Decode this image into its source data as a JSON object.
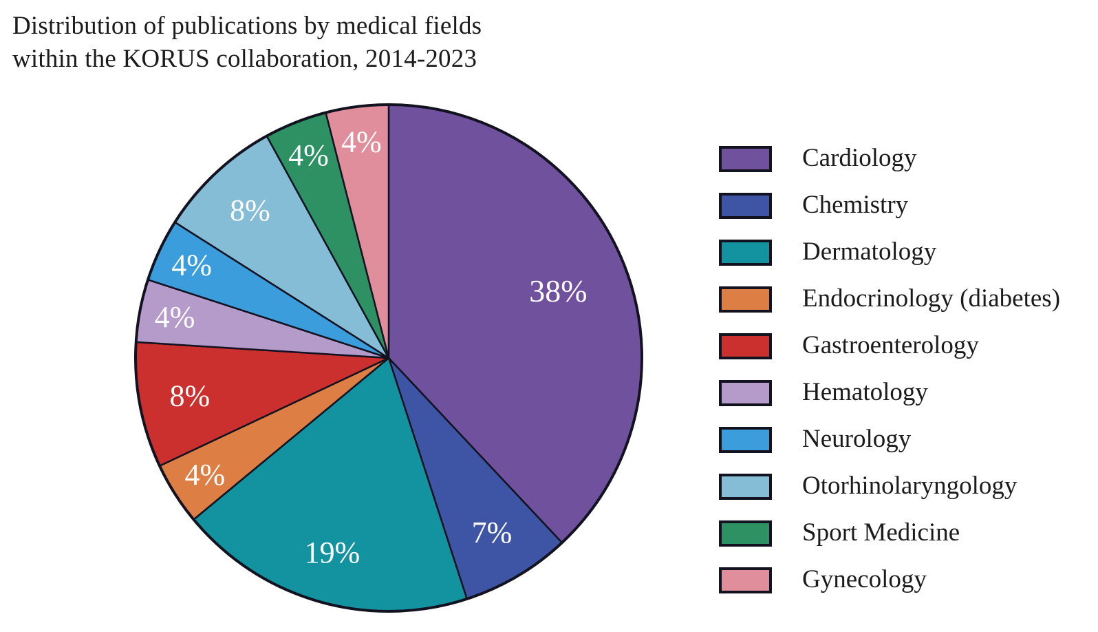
{
  "title": {
    "line1": "Distribution of publications by medical fields",
    "line2": "within the KORUS collaboration, 2014-2023"
  },
  "chart_data": {
    "type": "pie",
    "title": "Distribution of publications by medical fields within the KORUS collaboration, 2014-2023",
    "unit": "percent",
    "start_angle": "12 o'clock",
    "direction": "clockwise",
    "legend_position": "right",
    "slice_label_color": "#ffffff",
    "outline_color": "#121220",
    "slices": [
      {
        "label": "Cardiology",
        "value": 38,
        "display": "38%",
        "color": "#6f519e"
      },
      {
        "label": "Chemistry",
        "value": 7,
        "display": "7%",
        "color": "#3e55a6"
      },
      {
        "label": "Dermatology",
        "value": 19,
        "display": "19%",
        "color": "#13929f"
      },
      {
        "label": "Endocrinology (diabetes)",
        "value": 4,
        "display": "4%",
        "color": "#dd7e44"
      },
      {
        "label": "Gastroenterology",
        "value": 8,
        "display": "8%",
        "color": "#cc302e"
      },
      {
        "label": "Hematology",
        "value": 4,
        "display": "4%",
        "color": "#b59bca"
      },
      {
        "label": "Neurology",
        "value": 4,
        "display": "4%",
        "color": "#3c9ddc"
      },
      {
        "label": "Otorhinolaryngology",
        "value": 8,
        "display": "8%",
        "color": "#85bdd7"
      },
      {
        "label": "Sport Medicine",
        "value": 4,
        "display": "4%",
        "color": "#2e9164"
      },
      {
        "label": "Gynecology",
        "value": 4,
        "display": "4%",
        "color": "#e08e9b"
      }
    ]
  }
}
